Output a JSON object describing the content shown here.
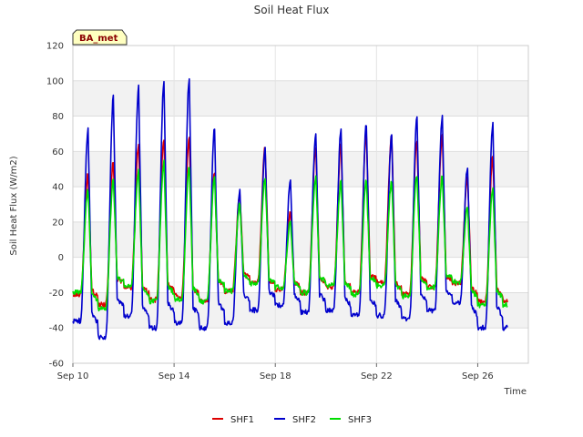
{
  "chart_data": {
    "type": "line",
    "title": "Soil Heat Flux",
    "xlabel": "Time",
    "ylabel": "Soil Heat Flux (W/m2)",
    "badge": "BA_met",
    "ylim": [
      -60,
      120
    ],
    "xlim": [
      10,
      28
    ],
    "yticks": [
      -60,
      -40,
      -20,
      0,
      20,
      40,
      60,
      80,
      100,
      120
    ],
    "xticks": [
      {
        "day": 10,
        "label": "Sep 10"
      },
      {
        "day": 14,
        "label": "Sep 14"
      },
      {
        "day": 18,
        "label": "Sep 18"
      },
      {
        "day": 22,
        "label": "Sep 22"
      },
      {
        "day": 26,
        "label": "Sep 26"
      }
    ],
    "days": [
      10,
      11,
      12,
      13,
      14,
      15,
      16,
      17,
      18,
      19,
      20,
      21,
      22,
      23,
      24,
      25,
      26
    ],
    "series": [
      {
        "name": "SHF1",
        "color": "#dd0000",
        "peaks": [
          47,
          55,
          64,
          66,
          68,
          49,
          36,
          62,
          25,
          62,
          64,
          70,
          69,
          66,
          69,
          45,
          57
        ],
        "mins": [
          -21,
          -27,
          -17,
          -24,
          -22,
          -25,
          -19,
          -14,
          -18,
          -20,
          -17,
          -20,
          -14,
          -21,
          -17,
          -15,
          -25
        ]
      },
      {
        "name": "SHF2",
        "color": "#0000cc",
        "peaks": [
          72,
          91,
          96,
          99,
          101,
          73,
          38,
          61,
          44,
          70,
          73,
          75,
          69,
          79,
          80,
          51,
          75
        ],
        "mins": [
          -36,
          -45,
          -33,
          -40,
          -37,
          -40,
          -37,
          -30,
          -27,
          -31,
          -30,
          -33,
          -33,
          -35,
          -30,
          -26,
          -40
        ]
      },
      {
        "name": "SHF3",
        "color": "#00dd00",
        "peaks": [
          38,
          45,
          49,
          54,
          51,
          45,
          30,
          45,
          20,
          45,
          43,
          44,
          43,
          47,
          46,
          28,
          39
        ],
        "mins": [
          -20,
          -29,
          -16,
          -25,
          -24,
          -25,
          -19,
          -15,
          -17,
          -20,
          -16,
          -21,
          -16,
          -22,
          -17,
          -14,
          -27
        ]
      }
    ]
  }
}
